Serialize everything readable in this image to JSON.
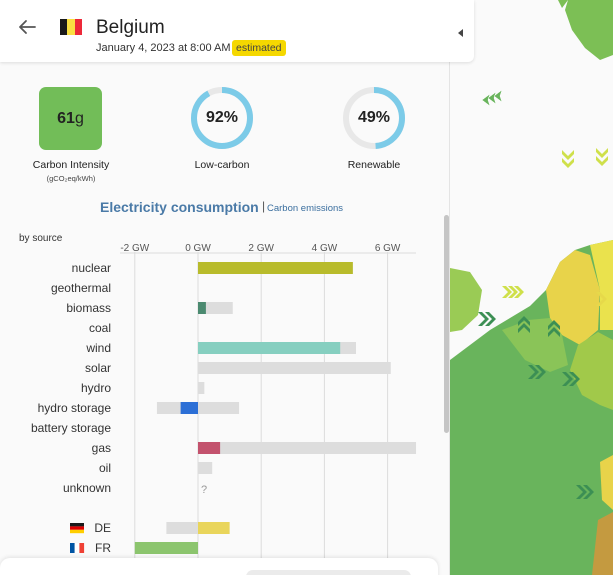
{
  "header": {
    "country": "Belgium",
    "datetime": "January 4, 2023 at 8:00 AM",
    "badge": "estimated",
    "flag_colors": [
      "#1a1a1a",
      "#fae042",
      "#ed2939"
    ]
  },
  "metrics": {
    "carbon_intensity": {
      "value": "61",
      "unit": "g",
      "label": "Carbon Intensity",
      "sublabel": "(gCO₂eq/kWh)",
      "color": "#72bd58"
    },
    "low_carbon": {
      "value": "92%",
      "fraction": 0.92,
      "label": "Low-carbon"
    },
    "renewable": {
      "value": "49%",
      "fraction": 0.49,
      "label": "Renewable"
    },
    "ring_color": "#7ccbe8",
    "ring_track_color": "#e8e8e8"
  },
  "section": {
    "title": "Electricity consumption",
    "separator": "|",
    "link": "Carbon emissions",
    "by_source": "by source"
  },
  "chart_data": {
    "type": "bar",
    "unit": "GW",
    "xlim": [
      -2.0,
      6.9
    ],
    "ticks": [
      {
        "value": -2,
        "label": "-2 GW"
      },
      {
        "value": 0,
        "label": "0 GW"
      },
      {
        "value": 2,
        "label": "2 GW"
      },
      {
        "value": 4,
        "label": "4 GW"
      },
      {
        "value": 6,
        "label": "6 GW"
      }
    ],
    "sources": [
      {
        "name": "nuclear",
        "value": 4.9,
        "capacity": 4.9,
        "color": "#b8bb2b"
      },
      {
        "name": "geothermal",
        "value": null,
        "capacity": null,
        "color": "#999999"
      },
      {
        "name": "biomass",
        "value": 0.25,
        "capacity": 1.1,
        "color": "#4b8a70"
      },
      {
        "name": "coal",
        "value": null,
        "capacity": null,
        "color": "#555555"
      },
      {
        "name": "wind",
        "value": 4.5,
        "capacity": 5.0,
        "color": "#86cfc0"
      },
      {
        "name": "solar",
        "value": 0.0,
        "capacity": 6.1,
        "color": "#f3c738"
      },
      {
        "name": "hydro",
        "value": 0.0,
        "capacity": 0.2,
        "color": "#2c6fd6"
      },
      {
        "name": "hydro storage",
        "value": -0.55,
        "capacity": 1.3,
        "capacity_min": -1.3,
        "color": "#2c6fd6"
      },
      {
        "name": "battery storage",
        "value": null,
        "capacity": null,
        "color": "#4a7fbd"
      },
      {
        "name": "gas",
        "value": 0.7,
        "capacity": 6.9,
        "color": "#c3526d"
      },
      {
        "name": "oil",
        "value": 0.0,
        "capacity": 0.45,
        "color": "#8a6d4a"
      },
      {
        "name": "unknown",
        "value": null,
        "capacity": null,
        "label": "?",
        "color": "#999999"
      }
    ],
    "exchanges": [
      {
        "name": "DE",
        "value": 1.0,
        "capacity": 1.0,
        "capacity_min": -1.0,
        "color": "#e9d55b",
        "flag": [
          "#1a1a1a",
          "#dd0000",
          "#ffce00"
        ]
      },
      {
        "name": "FR",
        "value": -2.0,
        "capacity": 0.0,
        "capacity_min": -2.0,
        "color": "#8cc56e",
        "flag": [
          "#0055a4",
          "#ffffff",
          "#ef4135"
        ]
      }
    ]
  }
}
